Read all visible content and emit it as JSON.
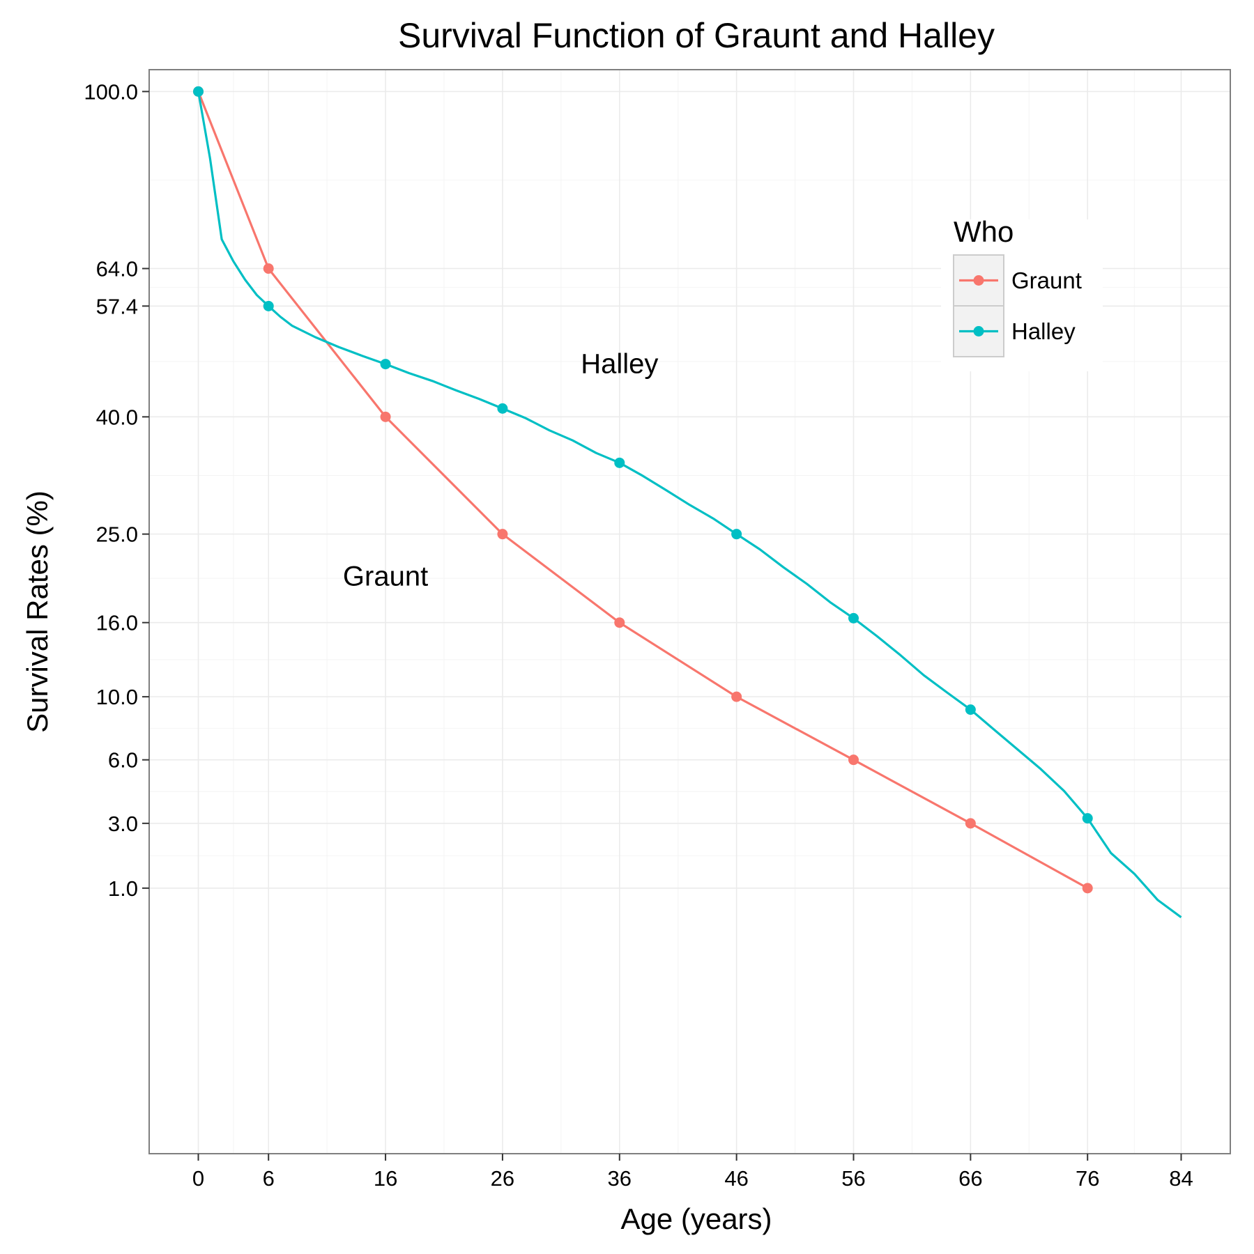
{
  "chart_data": {
    "type": "line",
    "title": "Survival Function of Graunt and Halley",
    "xlabel": "Age (years)",
    "ylabel": "Survival Rates (%)",
    "xlim": [
      -4.2,
      88.2
    ],
    "ylim": [
      -4,
      105
    ],
    "y_scale": "sqrt",
    "x_ticks": [
      0,
      6,
      16,
      26,
      36,
      46,
      56,
      66,
      76,
      84
    ],
    "y_ticks": [
      1,
      3,
      6,
      10,
      16,
      25,
      40,
      57.4,
      64,
      100
    ],
    "y_tick_labels": [
      "1.0",
      "3.0",
      "6.0",
      "10.0",
      "16.0",
      "25.0",
      "40.0",
      "57.4",
      "64.0",
      "100.0"
    ],
    "grid": true,
    "legend": {
      "title": "Who",
      "position": "top-right",
      "entries": [
        "Graunt",
        "Halley"
      ]
    },
    "annotations": [
      {
        "text": "Halley",
        "x": 36,
        "y": 48
      },
      {
        "text": "Graunt",
        "x": 16,
        "y": 20.5
      }
    ],
    "series": [
      {
        "name": "Graunt",
        "color": "#F8766D",
        "x": [
          0,
          6,
          16,
          26,
          36,
          46,
          56,
          66,
          76
        ],
        "y": [
          100,
          64,
          40,
          25,
          16,
          10,
          6,
          3,
          1
        ],
        "markers_x": [
          0,
          6,
          16,
          26,
          36,
          46,
          56,
          66,
          76
        ]
      },
      {
        "name": "Halley",
        "color": "#00BFC4",
        "x": [
          0,
          1,
          2,
          3,
          4,
          5,
          6,
          7,
          8,
          10,
          12,
          14,
          16,
          18,
          20,
          22,
          24,
          26,
          28,
          30,
          32,
          34,
          36,
          38,
          40,
          42,
          44,
          46,
          48,
          50,
          52,
          54,
          56,
          58,
          60,
          62,
          64,
          66,
          68,
          70,
          72,
          74,
          76,
          78,
          80,
          82,
          84
        ],
        "y": [
          100,
          85.5,
          69.4,
          65.3,
          62.0,
          59.3,
          57.4,
          55.6,
          54.1,
          52.2,
          50.6,
          49.2,
          47.9,
          46.5,
          45.3,
          43.9,
          42.6,
          41.2,
          39.8,
          38.1,
          36.7,
          35.0,
          33.7,
          32.0,
          30.2,
          28.4,
          26.8,
          25.0,
          23.3,
          21.4,
          19.7,
          17.9,
          16.4,
          14.8,
          13.2,
          11.6,
          10.3,
          9.1,
          7.8,
          6.6,
          5.5,
          4.4,
          3.2,
          1.95,
          1.35,
          0.75,
          0.45
        ],
        "markers_x": [
          0,
          6,
          16,
          26,
          36,
          46,
          56,
          66,
          76
        ]
      }
    ]
  }
}
